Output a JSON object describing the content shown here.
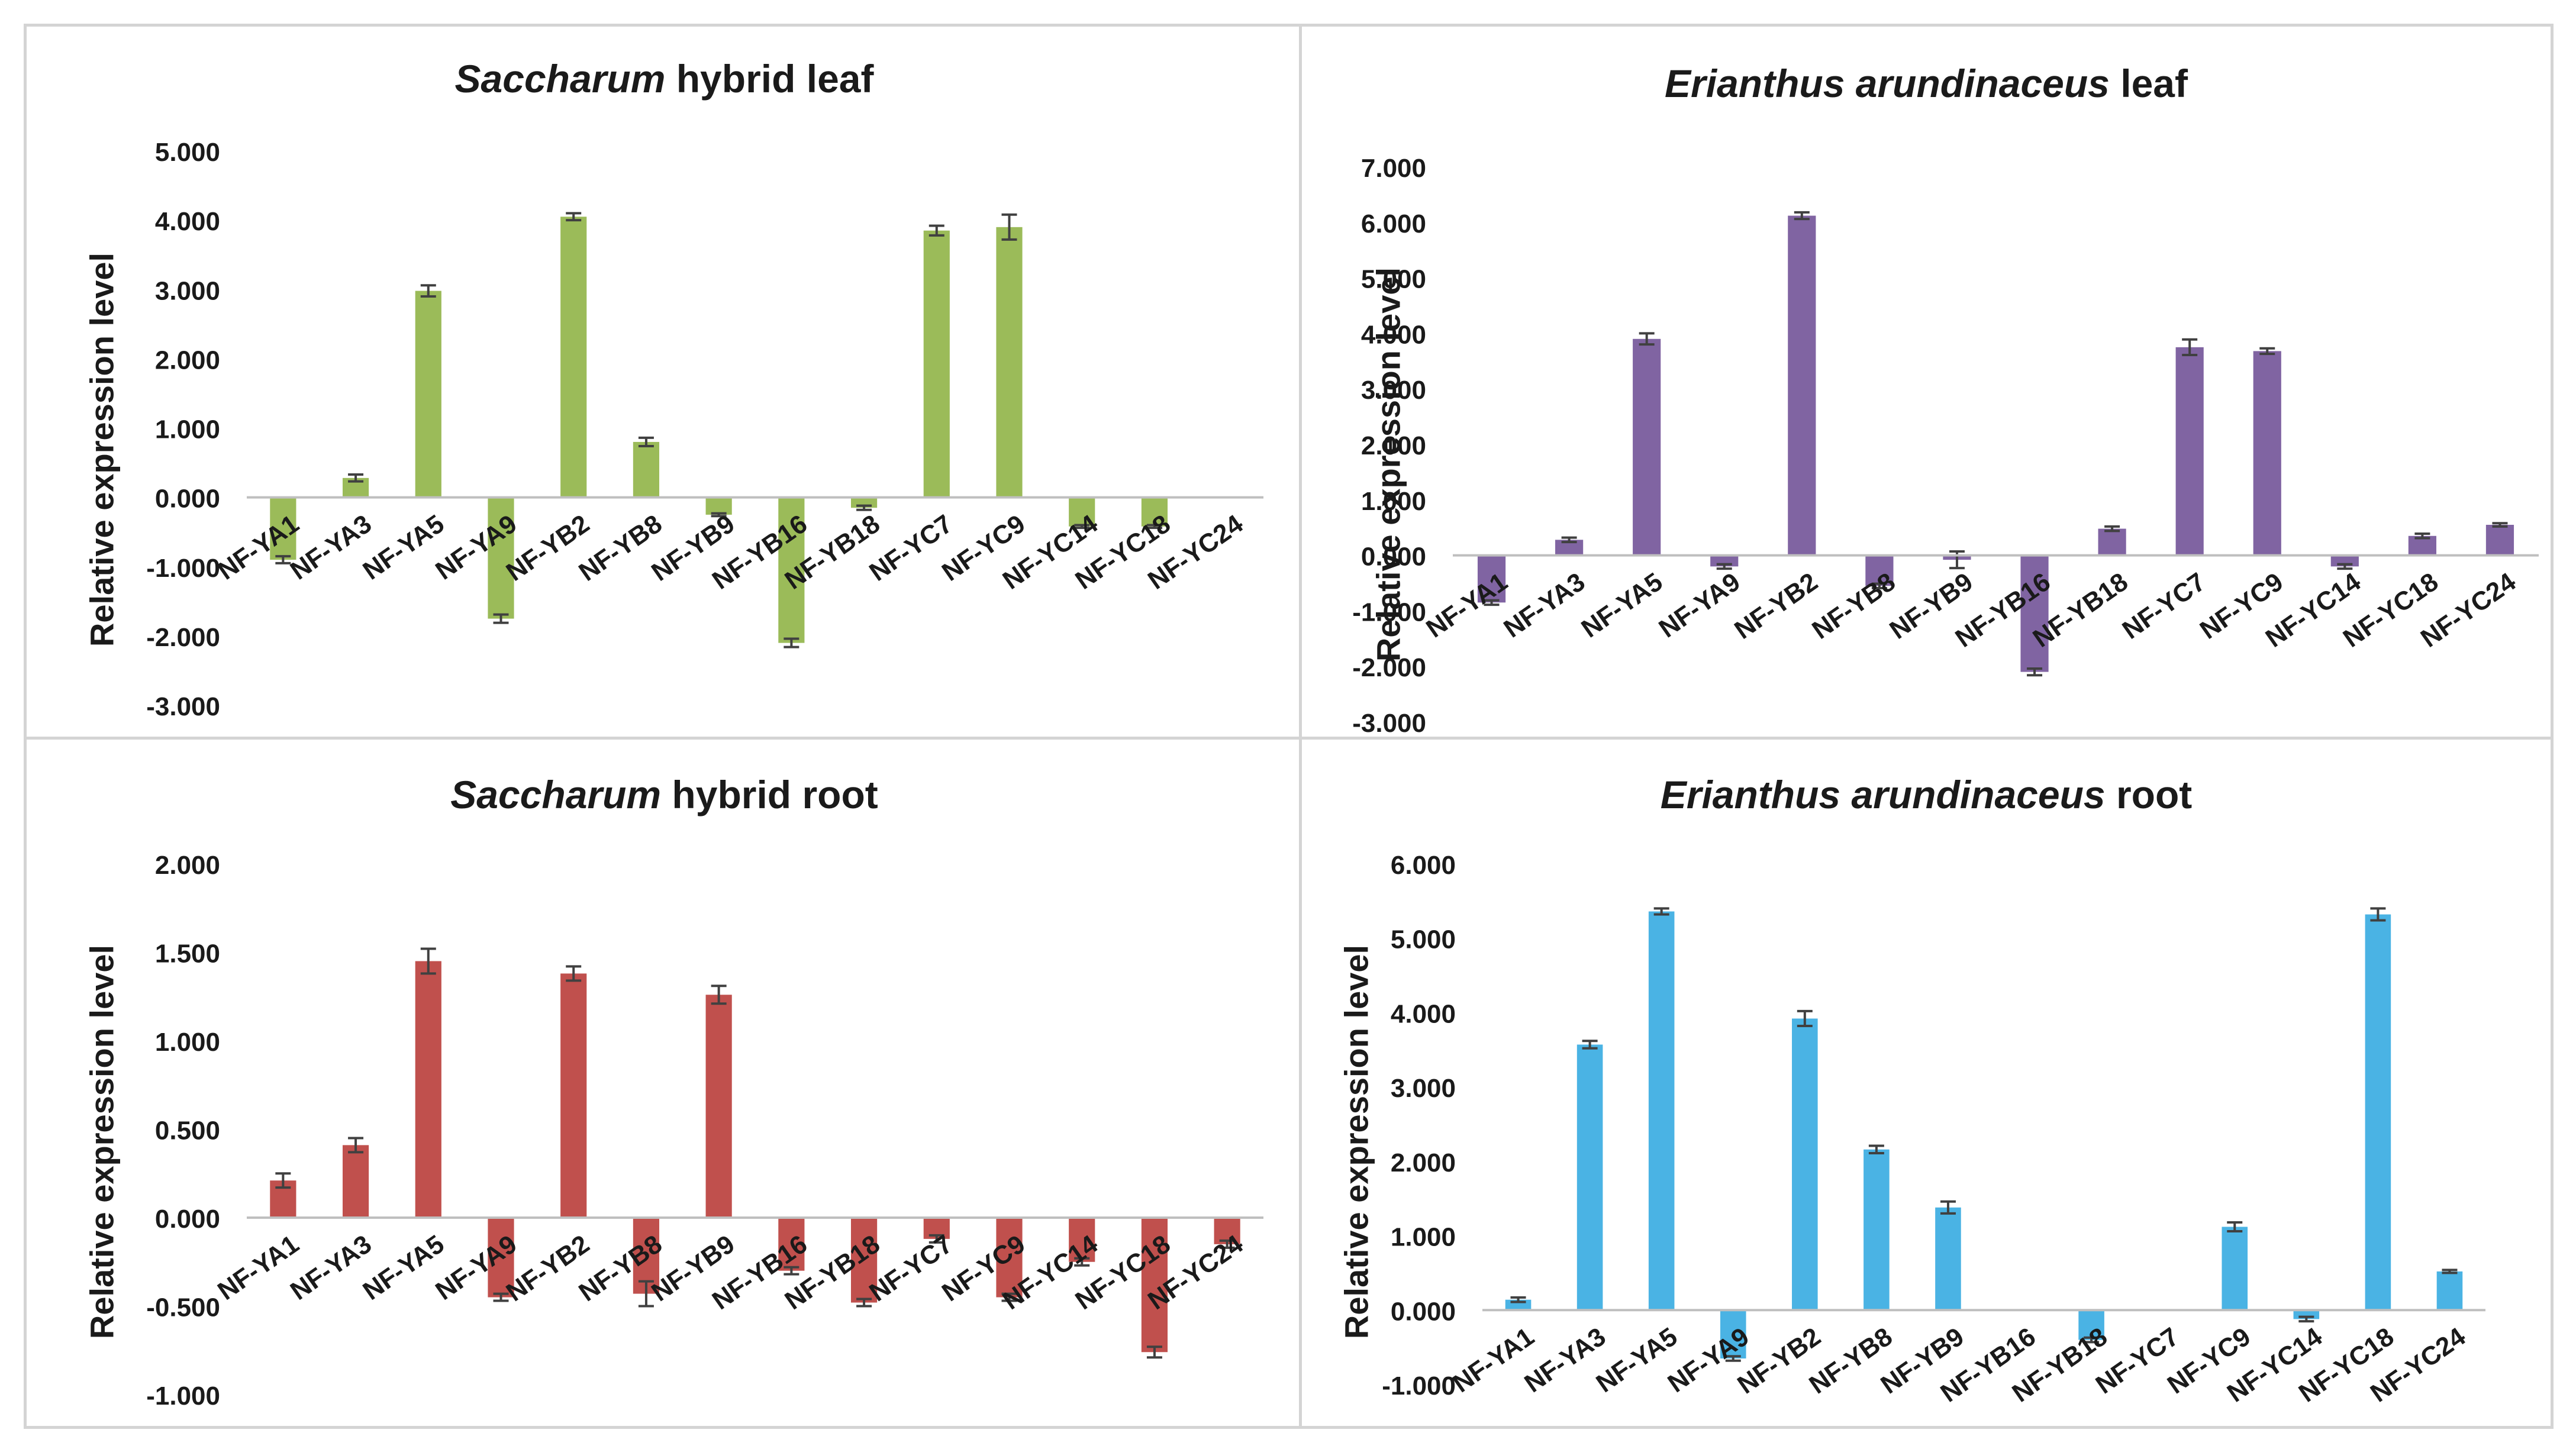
{
  "chart_data": [
    {
      "type": "bar",
      "title": {
        "italic": "Saccharum",
        "rest": " hybrid leaf"
      },
      "ylabel": "Relative expression level",
      "xlabel": "",
      "color": "#9bbb59",
      "ylim": [
        -3,
        5
      ],
      "yticks": [
        5,
        4,
        3,
        2,
        1,
        0,
        -1,
        -2,
        -3
      ],
      "ytick_labels": [
        "5.000",
        "4.000",
        "3.000",
        "2.000",
        "1.000",
        "0.000",
        "-1.000",
        "-2.000",
        "-3.000"
      ],
      "categories": [
        "NF-YA1",
        "NF-YA3",
        "NF-YA5",
        "NF-YA9",
        "NF-YB2",
        "NF-YB8",
        "NF-YB9",
        "NF-YB16",
        "NF-YB18",
        "NF-YC7",
        "NF-YC9",
        "NF-YC14",
        "NF-YC18",
        "NF-YC24"
      ],
      "values": [
        -0.9,
        0.28,
        2.98,
        -1.75,
        4.05,
        0.8,
        -0.25,
        -2.1,
        -0.15,
        3.85,
        3.9,
        -0.42,
        -0.42,
        0.0
      ],
      "errors": [
        0.05,
        0.05,
        0.08,
        0.06,
        0.05,
        0.06,
        0.02,
        0.06,
        0.03,
        0.07,
        0.18,
        0.02,
        0.02,
        0.0
      ],
      "legend": "none"
    },
    {
      "type": "bar",
      "title": {
        "italic": "Erianthus arundinaceus",
        "rest": " leaf"
      },
      "ylabel": "Relative expression level",
      "xlabel": "",
      "color": "#8064a2",
      "ylim": [
        -3,
        7
      ],
      "yticks": [
        7,
        6,
        5,
        4,
        3,
        2,
        1,
        0,
        -1,
        -2,
        -3
      ],
      "ytick_labels": [
        "7.000",
        "6.000",
        "5.000",
        "4.000",
        "3.000",
        "2.000",
        "1.000",
        "0.000",
        "-1.000",
        "-2.000",
        "-3.000"
      ],
      "categories": [
        "NF-YA1",
        "NF-YA3",
        "NF-YA5",
        "NF-YA9",
        "NF-YB2",
        "NF-YB8",
        "NF-YB9",
        "NF-YB16",
        "NF-YB18",
        "NF-YC7",
        "NF-YC9",
        "NF-YC14",
        "NF-YC18",
        "NF-YC24"
      ],
      "values": [
        -0.85,
        0.28,
        3.9,
        -0.2,
        6.12,
        -0.55,
        -0.08,
        -2.1,
        0.48,
        3.75,
        3.68,
        -0.2,
        0.35,
        0.55
      ],
      "errors": [
        0.04,
        0.04,
        0.1,
        0.04,
        0.06,
        0.04,
        0.15,
        0.06,
        0.04,
        0.14,
        0.05,
        0.04,
        0.04,
        0.03
      ],
      "legend": "none"
    },
    {
      "type": "bar",
      "title": {
        "italic": "Saccharum",
        "rest": " hybrid root"
      },
      "ylabel": "Relative expression level",
      "xlabel": "",
      "color": "#c0504d",
      "ylim": [
        -1,
        2
      ],
      "yticks": [
        2,
        1.5,
        1,
        0.5,
        0,
        -0.5,
        -1
      ],
      "ytick_labels": [
        "2.000",
        "1.500",
        "1.000",
        "0.500",
        "0.000",
        "-0.500",
        "-1.000"
      ],
      "categories": [
        "NF-YA1",
        "NF-YA3",
        "NF-YA5",
        "NF-YA9",
        "NF-YB2",
        "NF-YB8",
        "NF-YB9",
        "NF-YB16",
        "NF-YB18",
        "NF-YC7",
        "NF-YC9",
        "NF-YC14",
        "NF-YC18",
        "NF-YC24"
      ],
      "values": [
        0.21,
        0.41,
        1.45,
        -0.45,
        1.38,
        -0.43,
        1.26,
        -0.3,
        -0.48,
        -0.12,
        -0.45,
        -0.25,
        -0.76,
        -0.15
      ],
      "errors": [
        0.04,
        0.04,
        0.07,
        0.02,
        0.04,
        0.07,
        0.05,
        0.02,
        0.02,
        0.02,
        0.02,
        0.02,
        0.03,
        0.02
      ],
      "legend": "none"
    },
    {
      "type": "bar",
      "title": {
        "italic": "Erianthus arundinaceus",
        "rest": " root"
      },
      "ylabel": "Relative expression level",
      "xlabel": "",
      "color": "#4ab3e4",
      "ylim": [
        -1,
        6
      ],
      "yticks": [
        6,
        5,
        4,
        3,
        2,
        1,
        0,
        -1
      ],
      "ytick_labels": [
        "6.000",
        "5.000",
        "4.000",
        "3.000",
        "2.000",
        "1.000",
        "0.000",
        "-1.000"
      ],
      "categories": [
        "NF-YA1",
        "NF-YA3",
        "NF-YA5",
        "NF-YA9",
        "NF-YB2",
        "NF-YB8",
        "NF-YB9",
        "NF-YB16",
        "NF-YB18",
        "NF-YC7",
        "NF-YC9",
        "NF-YC14",
        "NF-YC18",
        "NF-YC24"
      ],
      "values": [
        0.14,
        3.57,
        5.36,
        -0.65,
        3.92,
        2.16,
        1.38,
        0.0,
        -0.4,
        0.0,
        1.12,
        -0.12,
        5.32,
        0.52
      ],
      "errors": [
        0.03,
        0.05,
        0.04,
        0.03,
        0.1,
        0.05,
        0.08,
        0.0,
        0.03,
        0.0,
        0.06,
        0.03,
        0.08,
        0.02
      ],
      "legend": "none"
    }
  ]
}
